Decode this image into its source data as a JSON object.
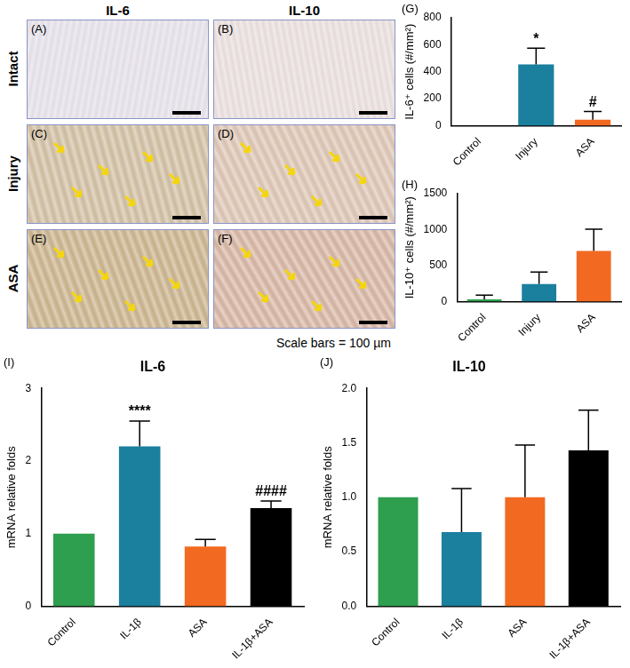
{
  "image_panels": {
    "column_labels": [
      "IL-6",
      "IL-10"
    ],
    "row_labels": [
      "Intact",
      "Injury",
      "ASA"
    ],
    "panel_labels": [
      [
        "(A)",
        "(B)"
      ],
      [
        "(C)",
        "(D)"
      ],
      [
        "(E)",
        "(F)"
      ]
    ],
    "scale_note": "Scale bars = 100 µm"
  },
  "chart_data": [
    {
      "type": "bar",
      "panel_label": "(G)",
      "y_label": "IL-6⁺ cells (#/mm²)",
      "categories": [
        "Control",
        "Injury",
        "ASA"
      ],
      "values": [
        0,
        455,
        45
      ],
      "errors": [
        0,
        120,
        60
      ],
      "colors": [
        "#2e9e4f",
        "#1b7f9e",
        "#f26a21"
      ],
      "ylim": [
        0,
        800
      ],
      "yticks": [
        0,
        200,
        400,
        600,
        800
      ],
      "grid": false,
      "annotations": [
        {
          "category": "Injury",
          "text": "*"
        },
        {
          "category": "ASA",
          "text": "#"
        }
      ]
    },
    {
      "type": "bar",
      "panel_label": "(H)",
      "y_label": "IL-10⁺ cells (#/mm²)",
      "categories": [
        "Control",
        "Injury",
        "ASA"
      ],
      "values": [
        30,
        245,
        705
      ],
      "errors": [
        60,
        165,
        300
      ],
      "colors": [
        "#2e9e4f",
        "#1b7f9e",
        "#f26a21"
      ],
      "ylim": [
        0,
        1500
      ],
      "yticks": [
        0,
        500,
        1000,
        1500
      ],
      "grid": false
    },
    {
      "type": "bar",
      "panel_label": "(I)",
      "title": "IL-6",
      "y_label": "mRNA relative folds",
      "categories": [
        "Control",
        "IL-1β",
        "ASA",
        "IL-1β+ASA"
      ],
      "values": [
        1,
        2.2,
        0.82,
        1.35
      ],
      "errors": [
        0,
        0.35,
        0.1,
        0.1
      ],
      "colors": [
        "#2e9e4f",
        "#1b7f9e",
        "#f26a21",
        "#000000"
      ],
      "ylim": [
        0,
        3
      ],
      "yticks": [
        0,
        1,
        2,
        3
      ],
      "grid": false,
      "annotations": [
        {
          "category": "IL-1β",
          "text": "****"
        },
        {
          "category": "IL-1β+ASA",
          "text": "####"
        }
      ]
    },
    {
      "type": "bar",
      "panel_label": "(J)",
      "title": "IL-10",
      "y_label": "mRNA relative folds",
      "categories": [
        "Control",
        "IL-1β",
        "ASA",
        "IL-1β+ASA"
      ],
      "values": [
        1,
        0.68,
        1.0,
        1.43
      ],
      "errors": [
        0,
        0.4,
        0.48,
        0.37
      ],
      "colors": [
        "#2e9e4f",
        "#1b7f9e",
        "#f26a21",
        "#000000"
      ],
      "ylim": [
        0,
        2
      ],
      "yticks": [
        {
          "value": 0,
          "label": "0.0"
        },
        0.5,
        {
          "value": 1,
          "label": "1.0"
        },
        1.5,
        {
          "value": 2,
          "label": "2.0"
        }
      ],
      "grid": false
    }
  ]
}
